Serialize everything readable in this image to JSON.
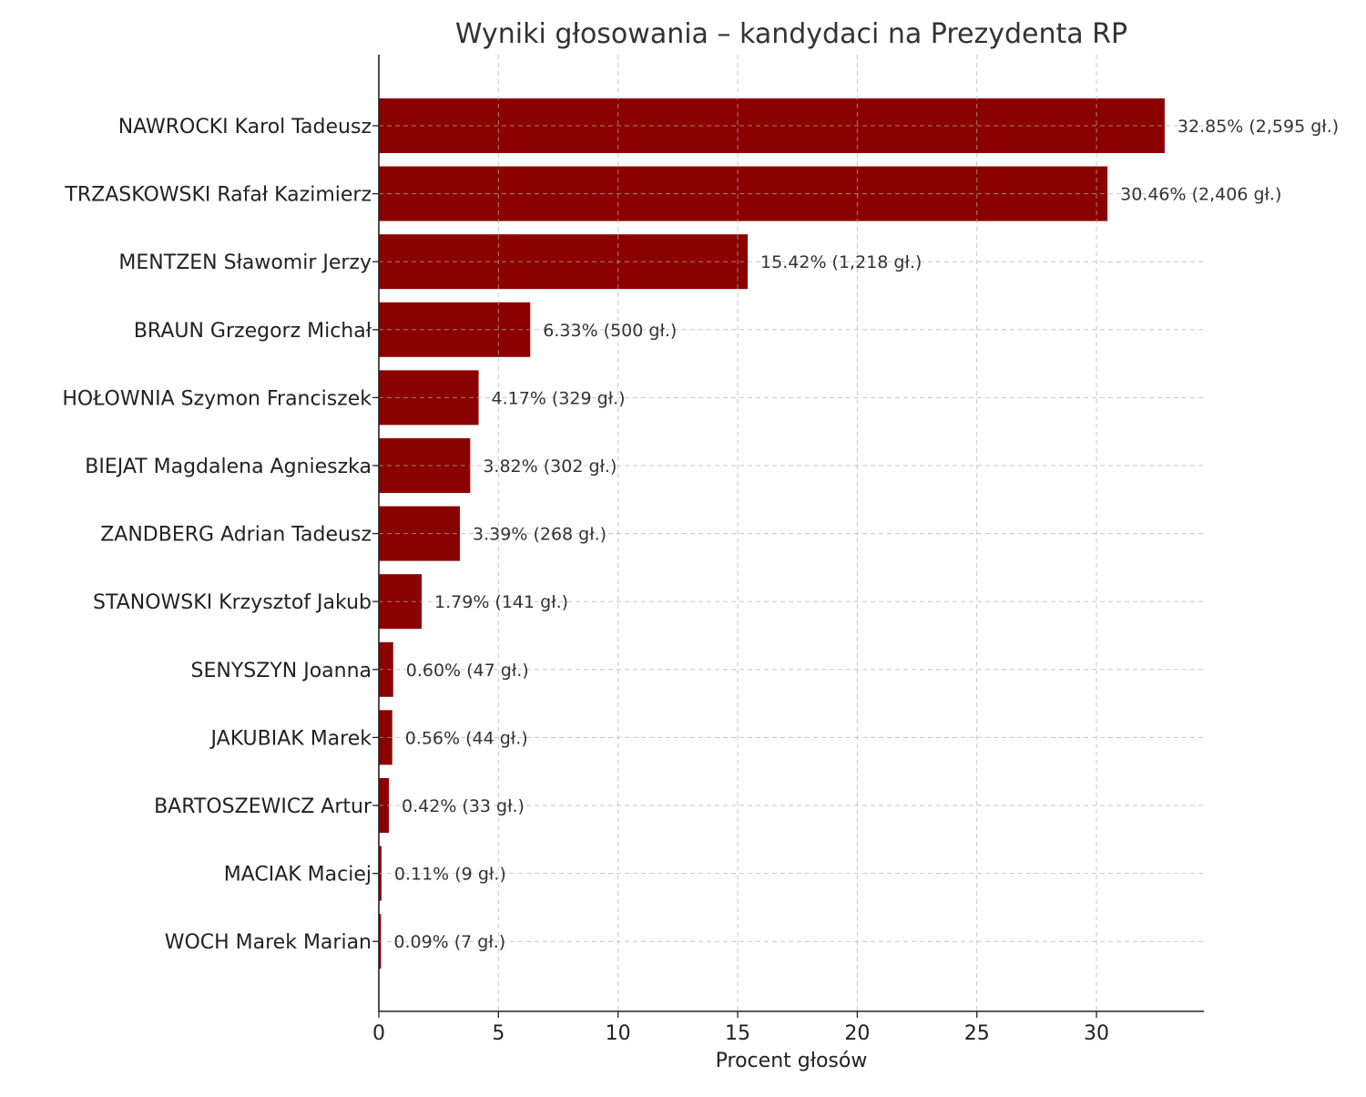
{
  "chart_data": {
    "type": "bar",
    "orientation": "horizontal",
    "title": "Wyniki głosowania – kandydaci na Prezydenta RP",
    "xlabel": "Procent głosów",
    "ylabel": "",
    "xlim": [
      0,
      34.49
    ],
    "xticks": [
      0,
      5,
      10,
      15,
      20,
      25,
      30
    ],
    "grid": true,
    "bar_color": "#8b0000",
    "categories": [
      "NAWROCKI Karol Tadeusz",
      "TRZASKOWSKI Rafał Kazimierz",
      "MENTZEN Sławomir Jerzy",
      "BRAUN Grzegorz Michał",
      "HOŁOWNIA Szymon Franciszek",
      "BIEJAT Magdalena Agnieszka",
      "ZANDBERG Adrian Tadeusz",
      "STANOWSKI Krzysztof Jakub",
      "SENYSZYN Joanna",
      "JAKUBIAK Marek",
      "BARTOSZEWICZ Artur",
      "MACIAK Maciej",
      "WOCH Marek Marian"
    ],
    "values": [
      32.85,
      30.46,
      15.42,
      6.33,
      4.17,
      3.82,
      3.39,
      1.79,
      0.6,
      0.56,
      0.42,
      0.11,
      0.09
    ],
    "data_labels": [
      "32.85% (2,595 gł.)",
      "30.46% (2,406 gł.)",
      "15.42% (1,218 gł.)",
      "6.33% (500 gł.)",
      "4.17% (329 gł.)",
      "3.82% (302 gł.)",
      "3.39% (268 gł.)",
      "1.79% (141 gł.)",
      "0.60% (47 gł.)",
      "0.56% (44 gł.)",
      "0.42% (33 gł.)",
      "0.11% (9 gł.)",
      "0.09% (7 gł.)"
    ]
  }
}
